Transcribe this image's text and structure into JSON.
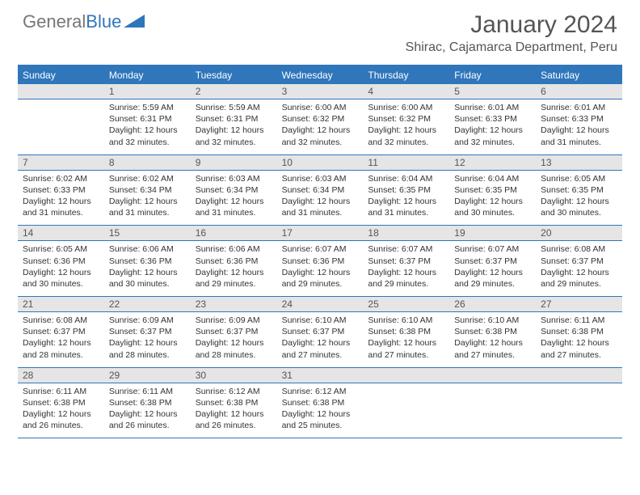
{
  "logo": {
    "text1": "General",
    "text2": "Blue"
  },
  "title": "January 2024",
  "location": "Shirac, Cajamarca Department, Peru",
  "colors": {
    "accent": "#2f76bb",
    "dow_bg": "#2f76bb",
    "dow_fg": "#ffffff",
    "daynum_bg": "#e5e5e5",
    "border": "#2f76bb",
    "text": "#333333",
    "title": "#555555"
  },
  "dow": [
    "Sunday",
    "Monday",
    "Tuesday",
    "Wednesday",
    "Thursday",
    "Friday",
    "Saturday"
  ],
  "weeks": [
    [
      {
        "n": "",
        "sr": "",
        "ss": "",
        "dl": ""
      },
      {
        "n": "1",
        "sr": "Sunrise: 5:59 AM",
        "ss": "Sunset: 6:31 PM",
        "dl": "Daylight: 12 hours and 32 minutes."
      },
      {
        "n": "2",
        "sr": "Sunrise: 5:59 AM",
        "ss": "Sunset: 6:31 PM",
        "dl": "Daylight: 12 hours and 32 minutes."
      },
      {
        "n": "3",
        "sr": "Sunrise: 6:00 AM",
        "ss": "Sunset: 6:32 PM",
        "dl": "Daylight: 12 hours and 32 minutes."
      },
      {
        "n": "4",
        "sr": "Sunrise: 6:00 AM",
        "ss": "Sunset: 6:32 PM",
        "dl": "Daylight: 12 hours and 32 minutes."
      },
      {
        "n": "5",
        "sr": "Sunrise: 6:01 AM",
        "ss": "Sunset: 6:33 PM",
        "dl": "Daylight: 12 hours and 32 minutes."
      },
      {
        "n": "6",
        "sr": "Sunrise: 6:01 AM",
        "ss": "Sunset: 6:33 PM",
        "dl": "Daylight: 12 hours and 31 minutes."
      }
    ],
    [
      {
        "n": "7",
        "sr": "Sunrise: 6:02 AM",
        "ss": "Sunset: 6:33 PM",
        "dl": "Daylight: 12 hours and 31 minutes."
      },
      {
        "n": "8",
        "sr": "Sunrise: 6:02 AM",
        "ss": "Sunset: 6:34 PM",
        "dl": "Daylight: 12 hours and 31 minutes."
      },
      {
        "n": "9",
        "sr": "Sunrise: 6:03 AM",
        "ss": "Sunset: 6:34 PM",
        "dl": "Daylight: 12 hours and 31 minutes."
      },
      {
        "n": "10",
        "sr": "Sunrise: 6:03 AM",
        "ss": "Sunset: 6:34 PM",
        "dl": "Daylight: 12 hours and 31 minutes."
      },
      {
        "n": "11",
        "sr": "Sunrise: 6:04 AM",
        "ss": "Sunset: 6:35 PM",
        "dl": "Daylight: 12 hours and 31 minutes."
      },
      {
        "n": "12",
        "sr": "Sunrise: 6:04 AM",
        "ss": "Sunset: 6:35 PM",
        "dl": "Daylight: 12 hours and 30 minutes."
      },
      {
        "n": "13",
        "sr": "Sunrise: 6:05 AM",
        "ss": "Sunset: 6:35 PM",
        "dl": "Daylight: 12 hours and 30 minutes."
      }
    ],
    [
      {
        "n": "14",
        "sr": "Sunrise: 6:05 AM",
        "ss": "Sunset: 6:36 PM",
        "dl": "Daylight: 12 hours and 30 minutes."
      },
      {
        "n": "15",
        "sr": "Sunrise: 6:06 AM",
        "ss": "Sunset: 6:36 PM",
        "dl": "Daylight: 12 hours and 30 minutes."
      },
      {
        "n": "16",
        "sr": "Sunrise: 6:06 AM",
        "ss": "Sunset: 6:36 PM",
        "dl": "Daylight: 12 hours and 29 minutes."
      },
      {
        "n": "17",
        "sr": "Sunrise: 6:07 AM",
        "ss": "Sunset: 6:36 PM",
        "dl": "Daylight: 12 hours and 29 minutes."
      },
      {
        "n": "18",
        "sr": "Sunrise: 6:07 AM",
        "ss": "Sunset: 6:37 PM",
        "dl": "Daylight: 12 hours and 29 minutes."
      },
      {
        "n": "19",
        "sr": "Sunrise: 6:07 AM",
        "ss": "Sunset: 6:37 PM",
        "dl": "Daylight: 12 hours and 29 minutes."
      },
      {
        "n": "20",
        "sr": "Sunrise: 6:08 AM",
        "ss": "Sunset: 6:37 PM",
        "dl": "Daylight: 12 hours and 29 minutes."
      }
    ],
    [
      {
        "n": "21",
        "sr": "Sunrise: 6:08 AM",
        "ss": "Sunset: 6:37 PM",
        "dl": "Daylight: 12 hours and 28 minutes."
      },
      {
        "n": "22",
        "sr": "Sunrise: 6:09 AM",
        "ss": "Sunset: 6:37 PM",
        "dl": "Daylight: 12 hours and 28 minutes."
      },
      {
        "n": "23",
        "sr": "Sunrise: 6:09 AM",
        "ss": "Sunset: 6:37 PM",
        "dl": "Daylight: 12 hours and 28 minutes."
      },
      {
        "n": "24",
        "sr": "Sunrise: 6:10 AM",
        "ss": "Sunset: 6:37 PM",
        "dl": "Daylight: 12 hours and 27 minutes."
      },
      {
        "n": "25",
        "sr": "Sunrise: 6:10 AM",
        "ss": "Sunset: 6:38 PM",
        "dl": "Daylight: 12 hours and 27 minutes."
      },
      {
        "n": "26",
        "sr": "Sunrise: 6:10 AM",
        "ss": "Sunset: 6:38 PM",
        "dl": "Daylight: 12 hours and 27 minutes."
      },
      {
        "n": "27",
        "sr": "Sunrise: 6:11 AM",
        "ss": "Sunset: 6:38 PM",
        "dl": "Daylight: 12 hours and 27 minutes."
      }
    ],
    [
      {
        "n": "28",
        "sr": "Sunrise: 6:11 AM",
        "ss": "Sunset: 6:38 PM",
        "dl": "Daylight: 12 hours and 26 minutes."
      },
      {
        "n": "29",
        "sr": "Sunrise: 6:11 AM",
        "ss": "Sunset: 6:38 PM",
        "dl": "Daylight: 12 hours and 26 minutes."
      },
      {
        "n": "30",
        "sr": "Sunrise: 6:12 AM",
        "ss": "Sunset: 6:38 PM",
        "dl": "Daylight: 12 hours and 26 minutes."
      },
      {
        "n": "31",
        "sr": "Sunrise: 6:12 AM",
        "ss": "Sunset: 6:38 PM",
        "dl": "Daylight: 12 hours and 25 minutes."
      },
      {
        "n": "",
        "sr": "",
        "ss": "",
        "dl": ""
      },
      {
        "n": "",
        "sr": "",
        "ss": "",
        "dl": ""
      },
      {
        "n": "",
        "sr": "",
        "ss": "",
        "dl": ""
      }
    ]
  ]
}
